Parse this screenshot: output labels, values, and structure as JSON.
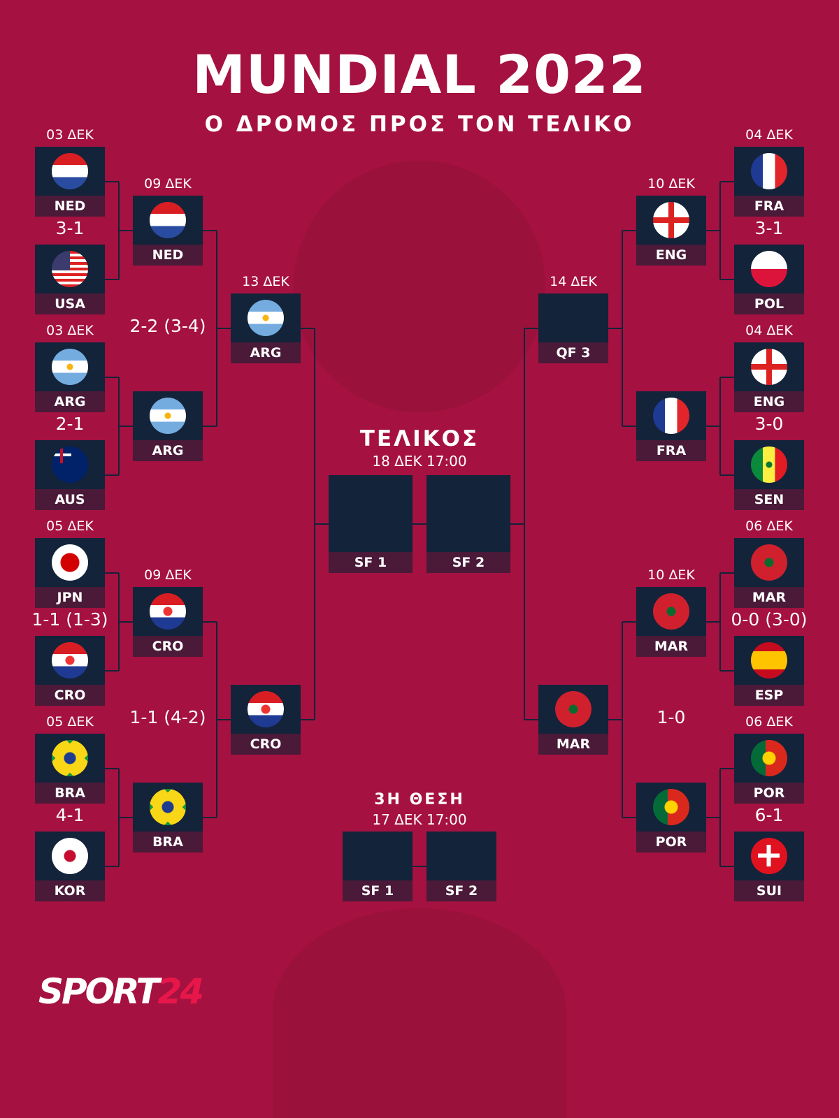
{
  "header": {
    "title": "MUNDIAL 2022",
    "subtitle": "Ο ΔΡΟΜΟΣ ΠΡΟΣ ΤΟΝ ΤΕΛΙΚΟ"
  },
  "colors": {
    "background": "#a51140",
    "box": "#12233a",
    "label": "#4a1a38",
    "logo_accent": "#e8174a"
  },
  "left": {
    "r16": [
      {
        "date": "03 ΔΕΚ",
        "score": "3-1",
        "teams": [
          {
            "code": "NED",
            "flag": "ned"
          },
          {
            "code": "USA",
            "flag": "usa"
          }
        ]
      },
      {
        "date": "03 ΔΕΚ",
        "score": "2-1",
        "teams": [
          {
            "code": "ARG",
            "flag": "arg"
          },
          {
            "code": "AUS",
            "flag": "aus"
          }
        ]
      },
      {
        "date": "05 ΔΕΚ",
        "score": "1-1 (1-3)",
        "teams": [
          {
            "code": "JPN",
            "flag": "jpn"
          },
          {
            "code": "CRO",
            "flag": "cro"
          }
        ]
      },
      {
        "date": "05 ΔΕΚ",
        "score": "4-1",
        "teams": [
          {
            "code": "BRA",
            "flag": "bra"
          },
          {
            "code": "KOR",
            "flag": "kor"
          }
        ]
      }
    ],
    "qf": [
      {
        "date": "09 ΔΕΚ",
        "score": "2-2 (3-4)",
        "teams": [
          {
            "code": "NED",
            "flag": "ned"
          },
          {
            "code": "ARG",
            "flag": "arg"
          }
        ]
      },
      {
        "date": "09 ΔΕΚ",
        "score": "1-1 (4-2)",
        "teams": [
          {
            "code": "CRO",
            "flag": "cro"
          },
          {
            "code": "BRA",
            "flag": "bra"
          }
        ]
      }
    ],
    "sf": {
      "date": "13 ΔΕΚ",
      "teams": [
        {
          "code": "ARG",
          "flag": "arg"
        },
        {
          "code": "CRO",
          "flag": "cro"
        }
      ]
    }
  },
  "right": {
    "r16": [
      {
        "date": "04 ΔΕΚ",
        "score": "3-1",
        "teams": [
          {
            "code": "FRA",
            "flag": "fra"
          },
          {
            "code": "POL",
            "flag": "pol"
          }
        ]
      },
      {
        "date": "04 ΔΕΚ",
        "score": "3-0",
        "teams": [
          {
            "code": "ENG",
            "flag": "eng"
          },
          {
            "code": "SEN",
            "flag": "sen"
          }
        ]
      },
      {
        "date": "06 ΔΕΚ",
        "score": "0-0 (3-0)",
        "teams": [
          {
            "code": "MAR",
            "flag": "mar"
          },
          {
            "code": "ESP",
            "flag": "esp"
          }
        ]
      },
      {
        "date": "06 ΔΕΚ",
        "score": "6-1",
        "teams": [
          {
            "code": "POR",
            "flag": "por"
          },
          {
            "code": "SUI",
            "flag": "sui"
          }
        ]
      }
    ],
    "qf": [
      {
        "date": "10 ΔΕΚ",
        "score": "",
        "teams": [
          {
            "code": "ENG",
            "flag": "eng"
          },
          {
            "code": "FRA",
            "flag": "fra"
          }
        ]
      },
      {
        "date": "10 ΔΕΚ",
        "score": "1-0",
        "teams": [
          {
            "code": "MAR",
            "flag": "mar"
          },
          {
            "code": "POR",
            "flag": "por"
          }
        ]
      }
    ],
    "sf": {
      "date": "14 ΔΕΚ",
      "teams": [
        {
          "code": "QF 3",
          "flag": ""
        },
        {
          "code": "MAR",
          "flag": "mar"
        }
      ]
    }
  },
  "final": {
    "title": "ΤΕΛΙΚΟΣ",
    "datetime": "18 ΔΕΚ 17:00",
    "slots": [
      "SF 1",
      "SF 2"
    ]
  },
  "third_place": {
    "title": "3Η ΘΕΣΗ",
    "datetime": "17 ΔΕΚ 17:00",
    "slots": [
      "SF 1",
      "SF 2"
    ]
  },
  "logo": {
    "text_main": "SPORT",
    "text_accent": "24"
  }
}
